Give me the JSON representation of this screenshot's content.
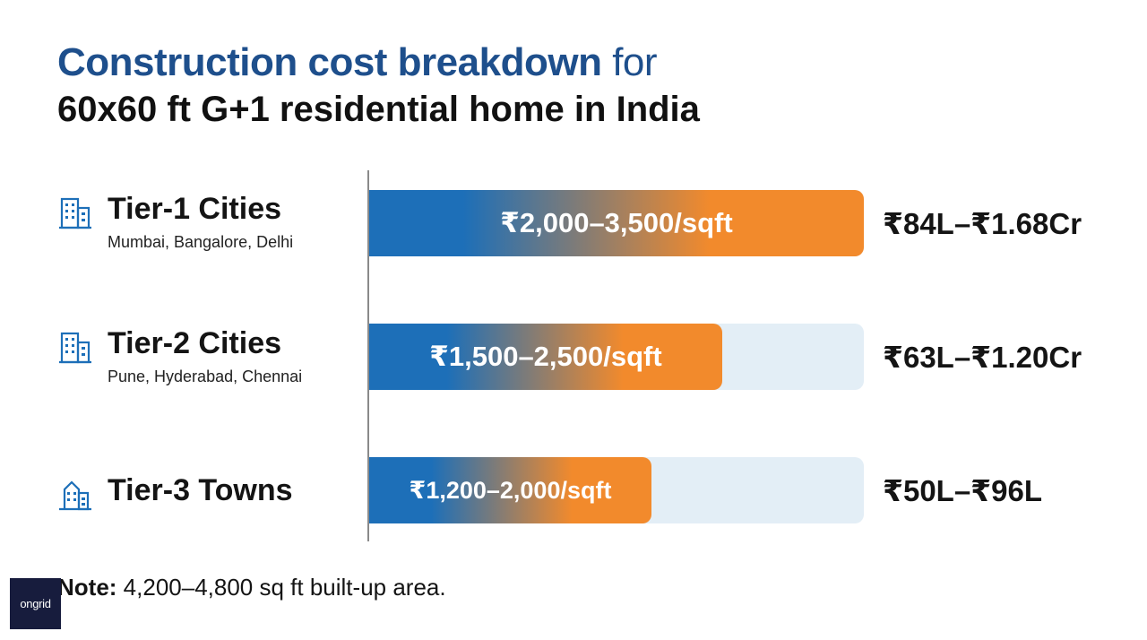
{
  "title": {
    "line1_bold": "Construction cost breakdown",
    "line1_tail": "for",
    "line2": "60x60 ft G+1 residential home in India"
  },
  "colors": {
    "title_blue": "#1e4f8c",
    "bar_blue": "#1d6fb8",
    "bar_orange": "#f28a2c",
    "track": "#e3eef6"
  },
  "chart_data": {
    "type": "bar",
    "orientation": "horizontal",
    "unit": "₹/sqft",
    "xlim": [
      0,
      3500
    ],
    "grid": false,
    "categories": [
      "Tier-1 Cities",
      "Tier-2 Cities",
      "Tier-3 Towns"
    ],
    "rows": [
      {
        "name": "Tier-1 Cities",
        "cities": "Mumbai, Bangalore, Delhi",
        "icon": "building-icon",
        "low": 2000,
        "high": 3500,
        "range_label": "₹2,000–3,500/sqft",
        "total": "₹84L–₹1.68Cr"
      },
      {
        "name": "Tier-2 Cities",
        "cities": "Pune, Hyderabad, Chennai",
        "icon": "building-icon",
        "low": 1500,
        "high": 2500,
        "range_label": "₹1,500–2,500/sqft",
        "total": "₹63L–₹1.20Cr"
      },
      {
        "name": "Tier-3 Towns",
        "cities": "",
        "icon": "small-building-icon",
        "low": 1200,
        "high": 2000,
        "range_label": "₹1,200–2,000/sqft",
        "total": "₹50L–₹96L"
      }
    ]
  },
  "note": {
    "label": "Note:",
    "text": "4,200–4,800 sq ft built-up area."
  },
  "logo": {
    "text": "ongrid"
  }
}
